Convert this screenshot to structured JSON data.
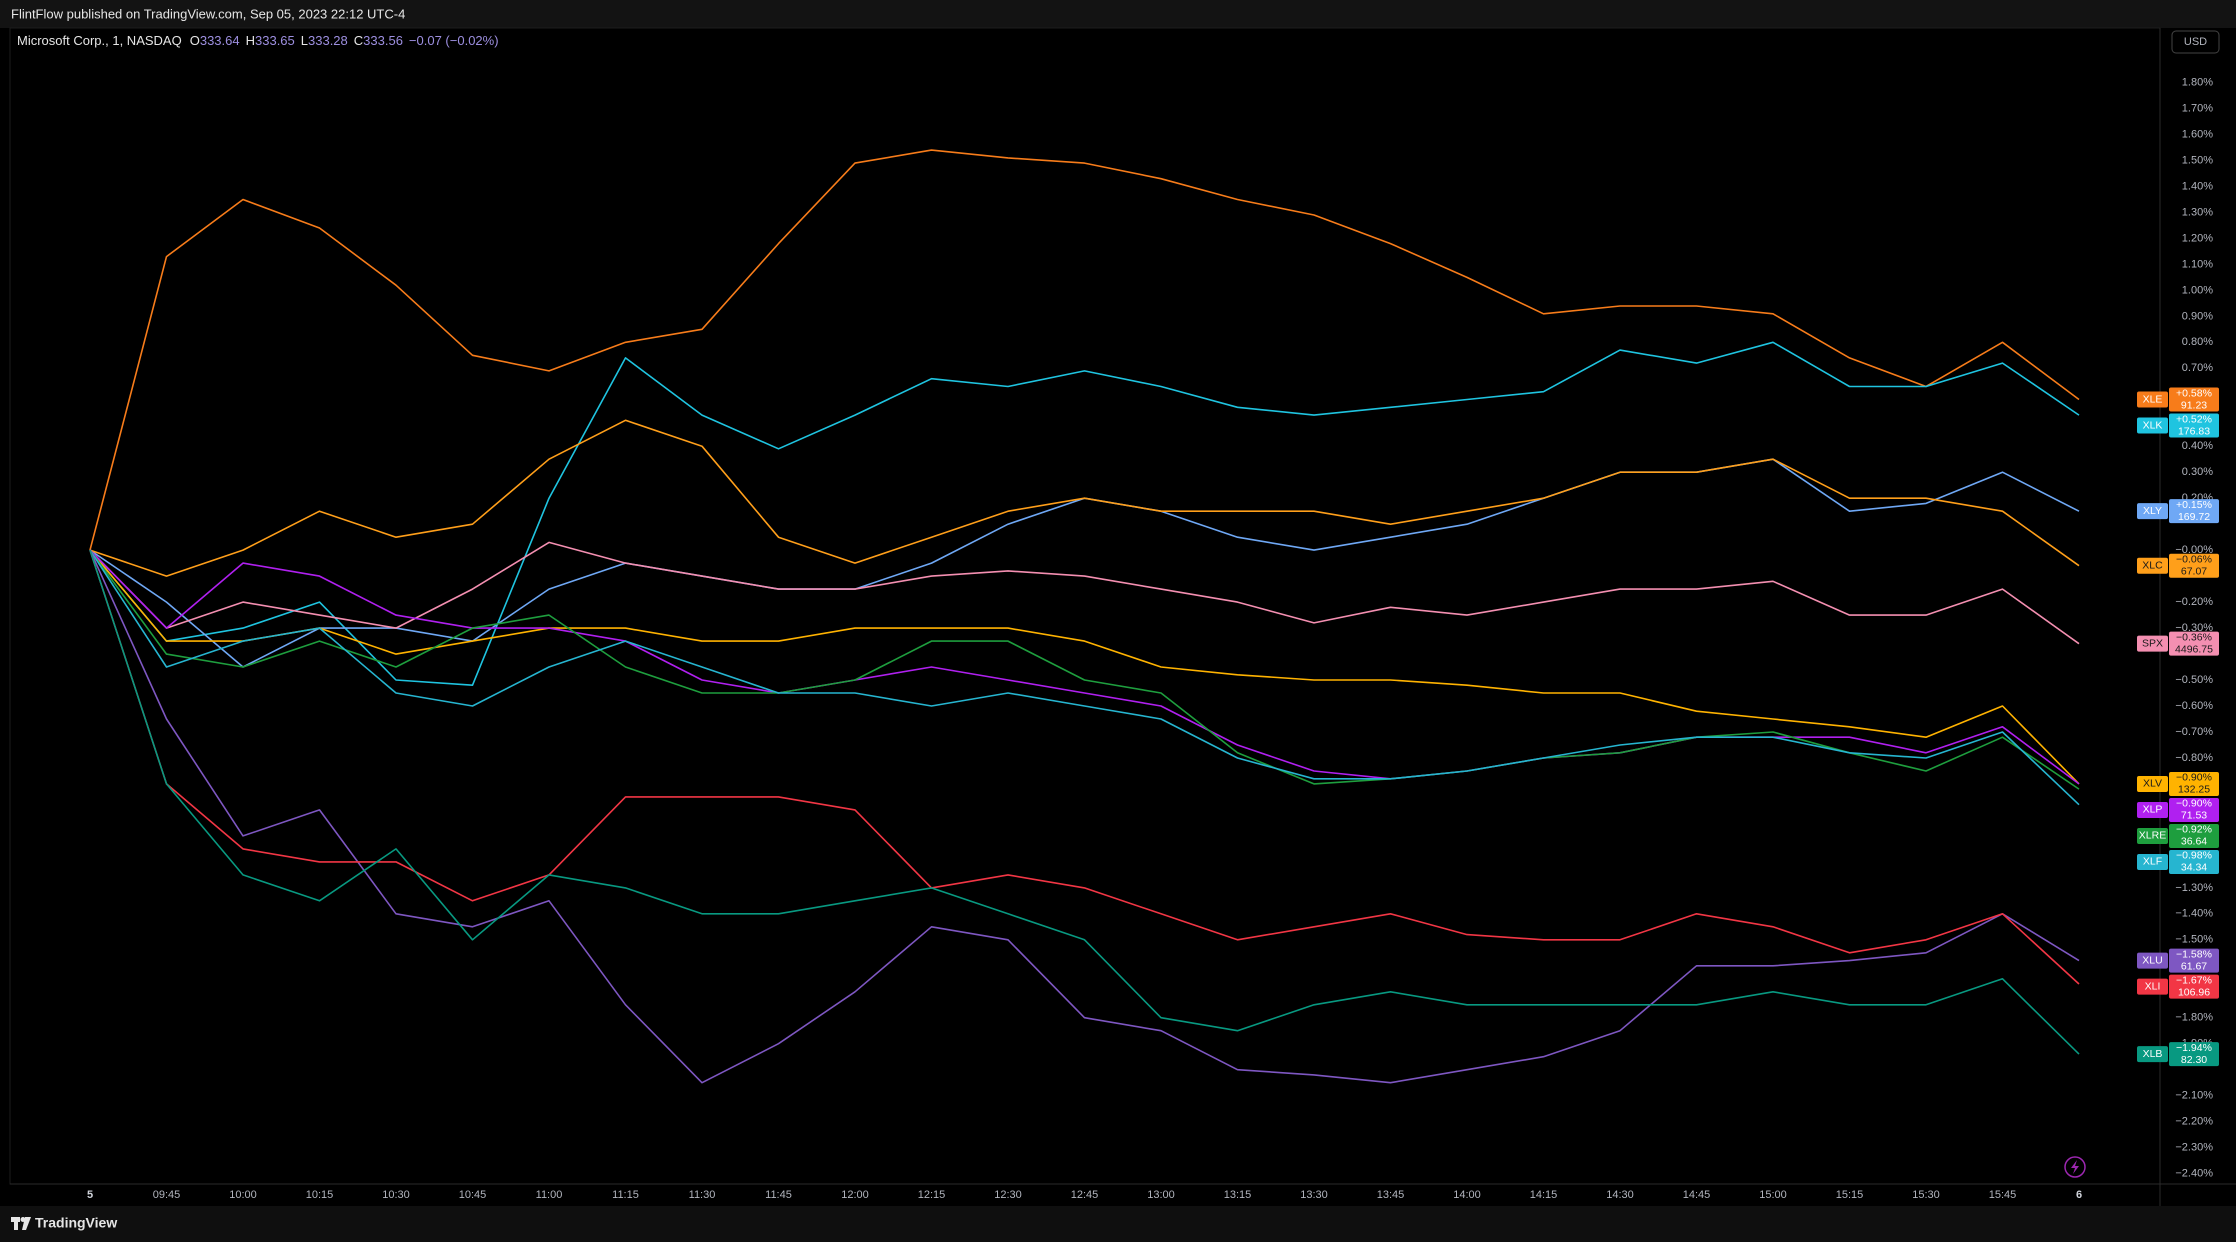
{
  "header": {
    "text": "FlintFlow published on TradingView.com, Sep 05, 2023 22:12 UTC-4"
  },
  "legend": {
    "symbol": "Microsoft Corp., 1, NASDAQ",
    "ohlc": [
      {
        "key": "O",
        "value": 333.64
      },
      {
        "key": "H",
        "value": 333.65
      },
      {
        "key": "L",
        "value": 333.28
      },
      {
        "key": "C",
        "value": 333.56
      }
    ],
    "change": "−0.07 (−0.02%)"
  },
  "currency": "USD",
  "footer": {
    "brand": "TradingView"
  },
  "chart_data": {
    "type": "line",
    "x": [
      "5",
      "09:45",
      "10:00",
      "10:15",
      "10:30",
      "10:45",
      "11:00",
      "11:15",
      "11:30",
      "11:45",
      "12:00",
      "12:15",
      "12:30",
      "12:45",
      "13:00",
      "13:15",
      "13:30",
      "13:45",
      "14:00",
      "14:15",
      "14:30",
      "14:45",
      "15:00",
      "15:15",
      "15:30",
      "15:45",
      "6"
    ],
    "ylim": [
      -2.44,
      2.01
    ],
    "yticks": [
      {
        "value": 1.8,
        "label": "1.80%"
      },
      {
        "value": 1.7,
        "label": "1.70%"
      },
      {
        "value": 1.6,
        "label": "1.60%"
      },
      {
        "value": 1.5,
        "label": "1.50%"
      },
      {
        "value": 1.4,
        "label": "1.40%"
      },
      {
        "value": 1.3,
        "label": "1.30%"
      },
      {
        "value": 1.2,
        "label": "1.20%"
      },
      {
        "value": 1.1,
        "label": "1.10%"
      },
      {
        "value": 1.0,
        "label": "1.00%"
      },
      {
        "value": 0.9,
        "label": "0.90%"
      },
      {
        "value": 0.8,
        "label": "0.80%"
      },
      {
        "value": 0.7,
        "label": "0.70%"
      },
      {
        "value": 0.4,
        "label": "0.40%"
      },
      {
        "value": 0.3,
        "label": "0.30%"
      },
      {
        "value": 0.2,
        "label": "0.20%"
      },
      {
        "value": 0,
        "label": "−0.00%"
      },
      {
        "value": -0.2,
        "label": "−0.20%"
      },
      {
        "value": -0.3,
        "label": "−0.30%"
      },
      {
        "value": -0.5,
        "label": "−0.50%"
      },
      {
        "value": -0.6,
        "label": "−0.60%"
      },
      {
        "value": -0.7,
        "label": "−0.70%"
      },
      {
        "value": -0.8,
        "label": "−0.80%"
      },
      {
        "value": -1.3,
        "label": "−1.30%"
      },
      {
        "value": -1.4,
        "label": "−1.40%"
      },
      {
        "value": -1.5,
        "label": "−1.50%"
      },
      {
        "value": -1.8,
        "label": "−1.80%"
      },
      {
        "value": -1.9,
        "label": "−1.90%"
      },
      {
        "value": -2.1,
        "label": "−2.10%"
      },
      {
        "value": -2.2,
        "label": "−2.20%"
      },
      {
        "value": -2.3,
        "label": "−2.30%"
      },
      {
        "value": -2.4,
        "label": "−2.40%"
      }
    ],
    "series": [
      {
        "name": "XLE",
        "color": "#f77c1a",
        "badge": "+0.58%",
        "price": "91.23",
        "values": [
          0,
          1.13,
          1.35,
          1.24,
          1.02,
          0.75,
          0.69,
          0.8,
          0.85,
          1.18,
          1.49,
          1.54,
          1.51,
          1.49,
          1.43,
          1.35,
          1.29,
          1.18,
          1.05,
          0.91,
          0.94,
          0.94,
          0.91,
          0.74,
          0.63,
          0.8,
          0.58
        ]
      },
      {
        "name": "XLK",
        "color": "#1fc4e0",
        "badge": "+0.52%",
        "price": "176.83",
        "values": [
          0,
          -0.35,
          -0.3,
          -0.2,
          -0.5,
          -0.52,
          0.2,
          0.74,
          0.52,
          0.39,
          0.52,
          0.66,
          0.63,
          0.69,
          0.63,
          0.55,
          0.52,
          0.55,
          0.58,
          0.61,
          0.77,
          0.72,
          0.8,
          0.63,
          0.63,
          0.72,
          0.52
        ]
      },
      {
        "name": "XLY",
        "color": "#6fa8f5",
        "badge": "+0.15%",
        "price": "169.72",
        "values": [
          0,
          -0.2,
          -0.45,
          -0.3,
          -0.3,
          -0.35,
          -0.15,
          -0.05,
          -0.1,
          -0.15,
          -0.15,
          -0.05,
          0.1,
          0.2,
          0.15,
          0.05,
          0,
          0.05,
          0.1,
          0.2,
          0.3,
          0.3,
          0.35,
          0.15,
          0.18,
          0.3,
          0.15
        ]
      },
      {
        "name": "XLC",
        "color": "#ff9f1a",
        "badge": "−0.06%",
        "price": "67.07",
        "values": [
          0,
          -0.1,
          0,
          0.15,
          0.05,
          0.1,
          0.35,
          0.5,
          0.4,
          0.05,
          -0.05,
          0.05,
          0.15,
          0.2,
          0.15,
          0.15,
          0.15,
          0.1,
          0.15,
          0.2,
          0.3,
          0.3,
          0.35,
          0.2,
          0.2,
          0.15,
          -0.06
        ]
      },
      {
        "name": "SPX",
        "color": "#f48fb1",
        "badge": "−0.36%",
        "price": "4496.75",
        "values": [
          0,
          -0.3,
          -0.2,
          -0.25,
          -0.3,
          -0.15,
          0.03,
          -0.05,
          -0.1,
          -0.15,
          -0.15,
          -0.1,
          -0.08,
          -0.1,
          -0.15,
          -0.2,
          -0.28,
          -0.22,
          -0.25,
          -0.2,
          -0.15,
          -0.15,
          -0.12,
          -0.25,
          -0.25,
          -0.15,
          -0.36
        ]
      },
      {
        "name": "XLV",
        "color": "#ffb300",
        "badge": "−0.90%",
        "price": "132.25",
        "values": [
          0,
          -0.35,
          -0.35,
          -0.3,
          -0.4,
          -0.35,
          -0.3,
          -0.3,
          -0.35,
          -0.35,
          -0.3,
          -0.3,
          -0.3,
          -0.35,
          -0.45,
          -0.48,
          -0.5,
          -0.5,
          -0.52,
          -0.55,
          -0.55,
          -0.62,
          -0.65,
          -0.68,
          -0.72,
          -0.6,
          -0.9
        ]
      },
      {
        "name": "XLP",
        "color": "#b020f0",
        "badge": "−0.90%",
        "price": "71.53",
        "values": [
          0,
          -0.3,
          -0.05,
          -0.1,
          -0.25,
          -0.3,
          -0.3,
          -0.35,
          -0.5,
          -0.55,
          -0.5,
          -0.45,
          -0.5,
          -0.55,
          -0.6,
          -0.75,
          -0.85,
          -0.88,
          -0.85,
          -0.8,
          -0.78,
          -0.72,
          -0.72,
          -0.72,
          -0.78,
          -0.68,
          -0.9
        ]
      },
      {
        "name": "XLRE",
        "color": "#1e9e3e",
        "badge": "−0.92%",
        "price": "36.64",
        "values": [
          0,
          -0.4,
          -0.45,
          -0.35,
          -0.45,
          -0.3,
          -0.25,
          -0.45,
          -0.55,
          -0.55,
          -0.5,
          -0.35,
          -0.35,
          -0.5,
          -0.55,
          -0.78,
          -0.9,
          -0.88,
          -0.85,
          -0.8,
          -0.78,
          -0.72,
          -0.7,
          -0.78,
          -0.85,
          -0.72,
          -0.92
        ]
      },
      {
        "name": "XLF",
        "color": "#26b5d0",
        "badge": "−0.98%",
        "price": "34.34",
        "values": [
          0,
          -0.45,
          -0.35,
          -0.3,
          -0.55,
          -0.6,
          -0.45,
          -0.35,
          -0.45,
          -0.55,
          -0.55,
          -0.6,
          -0.55,
          -0.6,
          -0.65,
          -0.8,
          -0.88,
          -0.88,
          -0.85,
          -0.8,
          -0.75,
          -0.72,
          -0.72,
          -0.78,
          -0.8,
          -0.7,
          -0.98
        ]
      },
      {
        "name": "XLU",
        "color": "#7e57c2",
        "badge": "−1.58%",
        "price": "61.67",
        "values": [
          0,
          -0.65,
          -1.1,
          -1.0,
          -1.4,
          -1.45,
          -1.35,
          -1.75,
          -2.05,
          -1.9,
          -1.7,
          -1.45,
          -1.5,
          -1.8,
          -1.85,
          -2.0,
          -2.02,
          -2.05,
          -2.0,
          -1.95,
          -1.85,
          -1.6,
          -1.6,
          -1.58,
          -1.55,
          -1.4,
          -1.58
        ]
      },
      {
        "name": "XLI",
        "color": "#f23645",
        "badge": "−1.67%",
        "price": "106.96",
        "values": [
          0,
          -0.9,
          -1.15,
          -1.2,
          -1.2,
          -1.35,
          -1.25,
          -0.95,
          -0.95,
          -0.95,
          -1.0,
          -1.3,
          -1.25,
          -1.3,
          -1.4,
          -1.5,
          -1.45,
          -1.4,
          -1.48,
          -1.5,
          -1.5,
          -1.4,
          -1.45,
          -1.55,
          -1.5,
          -1.4,
          -1.67
        ]
      },
      {
        "name": "XLB",
        "color": "#089981",
        "badge": "−1.94%",
        "price": "82.30",
        "values": [
          0,
          -0.9,
          -1.25,
          -1.35,
          -1.15,
          -1.5,
          -1.25,
          -1.3,
          -1.4,
          -1.4,
          -1.35,
          -1.3,
          -1.4,
          -1.5,
          -1.8,
          -1.85,
          -1.75,
          -1.7,
          -1.75,
          -1.75,
          -1.75,
          -1.75,
          -1.7,
          -1.75,
          -1.75,
          -1.65,
          -1.94
        ]
      }
    ]
  }
}
